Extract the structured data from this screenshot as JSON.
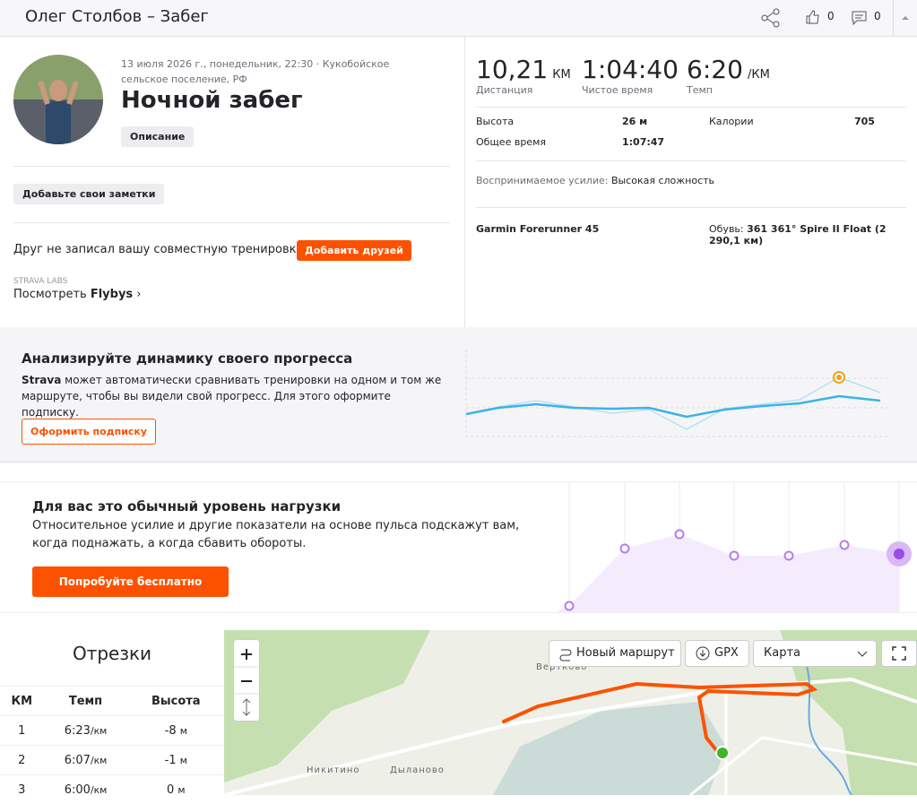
{
  "header": {
    "title": "Олег Столбов – Забег",
    "likes": "0",
    "comments": "0"
  },
  "activity": {
    "date_location": "13 июля 2026 г., понедельник, 22:30 · Кукобойское сельское поселение, РФ",
    "name": "Ночной забег",
    "description_button": "Описание",
    "notes_button": "Добавьте свои заметки",
    "friend_prompt": "Друг не записал вашу совместную тренировку?",
    "add_friends": "Добавить друзей",
    "labs": "STRAVA LABS",
    "flybys_prefix": "Посмотреть",
    "flybys": "Flybys"
  },
  "stats": {
    "main": [
      {
        "value": "10,21",
        "unit": "КМ",
        "label": "Дистанция"
      },
      {
        "value": "1:04:40",
        "label": "Чистое время"
      },
      {
        "value": "6:20",
        "unit": "/КМ",
        "label": "Темп"
      }
    ],
    "details": [
      {
        "label": "Высота",
        "value": "26 м"
      },
      {
        "label": "Калории",
        "value": "705"
      },
      {
        "label": "Общее время",
        "value": "1:07:47"
      }
    ],
    "perceived_label": "Воспринимаемое усилие:",
    "perceived_value": "Высокая сложность",
    "device": "Garmin Forerunner 45",
    "shoes_label": "Обувь:",
    "shoes_value": "361 361° Spire II Float (2 290,1 км)"
  },
  "promo_progress": {
    "title": "Анализируйте динамику своего прогресса",
    "brand": "Strava",
    "text": "может автоматически сравнивать тренировки на одном и том же маршруте, чтобы вы видели свой прогресс. Для этого оформите подписку.",
    "button": "Оформить подписку"
  },
  "promo_effort": {
    "title": "Для вас это обычный уровень нагрузки",
    "text": "Относительное усилие и другие показатели на основе пульса подскажут вам, когда поднажать, а когда сбавить обороты.",
    "button": "Попробуйте бесплатно"
  },
  "segments": {
    "title": "Отрезки",
    "columns": [
      "КМ",
      "Темп",
      "Высота"
    ],
    "rows": [
      {
        "km": "1",
        "pace": "6:23",
        "pace_unit": "/км",
        "elev": "-8",
        "elev_unit": "м"
      },
      {
        "km": "2",
        "pace": "6:07",
        "pace_unit": "/км",
        "elev": "-1",
        "elev_unit": "м"
      },
      {
        "km": "3",
        "pace": "6:00",
        "pace_unit": "/км",
        "elev": "0",
        "elev_unit": "м"
      }
    ]
  },
  "map": {
    "new_route": "Новый маршрут",
    "gpx": "GPX",
    "layer": "Карта",
    "places": [
      "Вертково",
      "Никитино",
      "Дыланово"
    ]
  }
}
